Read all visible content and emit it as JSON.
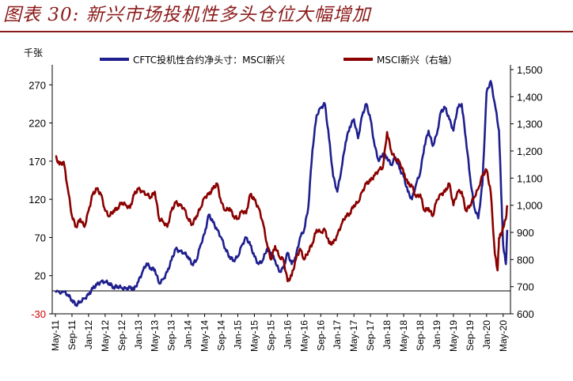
{
  "header": {
    "title": "图表 30:  新兴市场投机性多头仓位大幅增加"
  },
  "chart_data": {
    "type": "line",
    "left_axis": {
      "unit": "千张",
      "ticks": [
        270,
        220,
        170,
        120,
        70,
        20,
        -30
      ],
      "range": [
        -30,
        290
      ]
    },
    "right_axis": {
      "ticks": [
        "1,500",
        "1,400",
        "1,300",
        "1,200",
        "1,100",
        "1,000",
        "900",
        "800",
        "700",
        "600"
      ],
      "range": [
        600,
        1500
      ]
    },
    "x_ticks": [
      "May-11",
      "Sep-11",
      "Jan-12",
      "May-12",
      "Sep-12",
      "Jan-13",
      "May-13",
      "Sep-13",
      "Jan-14",
      "May-14",
      "Sep-14",
      "Jan-15",
      "May-15",
      "Sep-15",
      "Jan-16",
      "May-16",
      "Sep-16",
      "Jan-17",
      "May-17",
      "Sep-17",
      "Jan-18",
      "May-18",
      "Sep-18",
      "Jan-19",
      "May-19",
      "Sep-19",
      "Jan-20",
      "May-20"
    ],
    "series": [
      {
        "name": "CFTC投机性合约净头寸：MSCI新兴",
        "axis": "left",
        "color": "#1f1f8f",
        "points": [
          [
            "May-11",
            -2
          ],
          [
            "Jul-11",
            -1
          ],
          [
            "Aug-11",
            -5
          ],
          [
            "Sep-11",
            -12
          ],
          [
            "Oct-11",
            -18
          ],
          [
            "Nov-11",
            -14
          ],
          [
            "Dec-11",
            -10
          ],
          [
            "Jan-12",
            -5
          ],
          [
            "Feb-12",
            3
          ],
          [
            "Mar-12",
            8
          ],
          [
            "Apr-12",
            12
          ],
          [
            "May-12",
            12
          ],
          [
            "Jun-12",
            10
          ],
          [
            "Jul-12",
            5
          ],
          [
            "Aug-12",
            6
          ],
          [
            "Sep-12",
            4
          ],
          [
            "Oct-12",
            3
          ],
          [
            "Nov-12",
            4
          ],
          [
            "Dec-12",
            2
          ],
          [
            "Jan-13",
            12
          ],
          [
            "Feb-13",
            25
          ],
          [
            "Mar-13",
            36
          ],
          [
            "Apr-13",
            30
          ],
          [
            "May-13",
            28
          ],
          [
            "Jun-13",
            10
          ],
          [
            "Jul-13",
            15
          ],
          [
            "Aug-13",
            25
          ],
          [
            "Sep-13",
            40
          ],
          [
            "Oct-13",
            55
          ],
          [
            "Nov-13",
            52
          ],
          [
            "Dec-13",
            50
          ],
          [
            "Jan-14",
            45
          ],
          [
            "Feb-14",
            35
          ],
          [
            "Mar-14",
            40
          ],
          [
            "Apr-14",
            60
          ],
          [
            "May-14",
            75
          ],
          [
            "Jun-14",
            100
          ],
          [
            "Jul-14",
            90
          ],
          [
            "Aug-14",
            80
          ],
          [
            "Sep-14",
            70
          ],
          [
            "Oct-14",
            55
          ],
          [
            "Nov-14",
            45
          ],
          [
            "Dec-14",
            40
          ],
          [
            "Jan-15",
            45
          ],
          [
            "Feb-15",
            60
          ],
          [
            "Mar-15",
            70
          ],
          [
            "Apr-15",
            60
          ],
          [
            "May-15",
            45
          ],
          [
            "Jun-15",
            35
          ],
          [
            "Jul-15",
            40
          ],
          [
            "Aug-15",
            55
          ],
          [
            "Sep-15",
            50
          ],
          [
            "Oct-15",
            40
          ],
          [
            "Nov-15",
            25
          ],
          [
            "Dec-15",
            30
          ],
          [
            "Jan-16",
            50
          ],
          [
            "Feb-16",
            35
          ],
          [
            "Mar-16",
            45
          ],
          [
            "Apr-16",
            70
          ],
          [
            "May-16",
            80
          ],
          [
            "Jun-16",
            110
          ],
          [
            "Jul-16",
            185
          ],
          [
            "Aug-16",
            230
          ],
          [
            "Sep-16",
            240
          ],
          [
            "Oct-16",
            245
          ],
          [
            "Nov-16",
            200
          ],
          [
            "Dec-16",
            150
          ],
          [
            "Jan-17",
            130
          ],
          [
            "Feb-17",
            160
          ],
          [
            "Mar-17",
            195
          ],
          [
            "Apr-17",
            215
          ],
          [
            "May-17",
            225
          ],
          [
            "Jun-17",
            200
          ],
          [
            "Jul-17",
            230
          ],
          [
            "Aug-17",
            245
          ],
          [
            "Sep-17",
            225
          ],
          [
            "Oct-17",
            190
          ],
          [
            "Nov-17",
            170
          ],
          [
            "Dec-17",
            180
          ],
          [
            "Jan-18",
            175
          ],
          [
            "Feb-18",
            165
          ],
          [
            "Mar-18",
            175
          ],
          [
            "Apr-18",
            160
          ],
          [
            "May-18",
            150
          ],
          [
            "Jun-18",
            130
          ],
          [
            "Jul-18",
            120
          ],
          [
            "Aug-18",
            140
          ],
          [
            "Sep-18",
            155
          ],
          [
            "Oct-18",
            190
          ],
          [
            "Nov-18",
            210
          ],
          [
            "Dec-18",
            190
          ],
          [
            "Jan-19",
            205
          ],
          [
            "Feb-19",
            235
          ],
          [
            "Mar-19",
            240
          ],
          [
            "Apr-19",
            225
          ],
          [
            "May-19",
            210
          ],
          [
            "Jun-19",
            240
          ],
          [
            "Jul-19",
            245
          ],
          [
            "Aug-19",
            200
          ],
          [
            "Sep-19",
            150
          ],
          [
            "Oct-19",
            110
          ],
          [
            "Nov-19",
            95
          ],
          [
            "Dec-19",
            140
          ],
          [
            "Jan-20",
            260
          ],
          [
            "Feb-20",
            275
          ],
          [
            "Mar-20",
            245
          ],
          [
            "Apr-20",
            210
          ],
          [
            "Apr-20b",
            110
          ],
          [
            "May-20",
            60
          ],
          [
            "May-20b",
            35
          ],
          [
            "May-20c",
            80
          ]
        ]
      },
      {
        "name": "MSCI新兴（右轴）",
        "axis": "right",
        "color": "#8b0000",
        "points": [
          [
            "May-11",
            1180
          ],
          [
            "Jun-11",
            1150
          ],
          [
            "Jul-11",
            1160
          ],
          [
            "Aug-11",
            1060
          ],
          [
            "Sep-11",
            960
          ],
          [
            "Oct-11",
            920
          ],
          [
            "Nov-11",
            950
          ],
          [
            "Dec-11",
            920
          ],
          [
            "Jan-12",
            980
          ],
          [
            "Feb-12",
            1040
          ],
          [
            "Mar-12",
            1060
          ],
          [
            "Apr-12",
            1040
          ],
          [
            "May-12",
            980
          ],
          [
            "Jun-12",
            960
          ],
          [
            "Jul-12",
            980
          ],
          [
            "Aug-12",
            990
          ],
          [
            "Sep-12",
            1010
          ],
          [
            "Oct-12",
            1000
          ],
          [
            "Nov-12",
            990
          ],
          [
            "Dec-12",
            1040
          ],
          [
            "Jan-13",
            1060
          ],
          [
            "Feb-13",
            1050
          ],
          [
            "Mar-13",
            1040
          ],
          [
            "Apr-13",
            1030
          ],
          [
            "May-13",
            1050
          ],
          [
            "Jun-13",
            950
          ],
          [
            "Jul-13",
            940
          ],
          [
            "Aug-13",
            920
          ],
          [
            "Sep-13",
            980
          ],
          [
            "Oct-13",
            1010
          ],
          [
            "Nov-13",
            1000
          ],
          [
            "Dec-13",
            990
          ],
          [
            "Jan-14",
            950
          ],
          [
            "Feb-14",
            930
          ],
          [
            "Mar-14",
            960
          ],
          [
            "Apr-14",
            990
          ],
          [
            "May-14",
            1030
          ],
          [
            "Jun-14",
            1040
          ],
          [
            "Jul-14",
            1060
          ],
          [
            "Aug-14",
            1080
          ],
          [
            "Sep-14",
            1010
          ],
          [
            "Oct-14",
            980
          ],
          [
            "Nov-14",
            990
          ],
          [
            "Dec-14",
            960
          ],
          [
            "Jan-15",
            950
          ],
          [
            "Feb-15",
            980
          ],
          [
            "Mar-15",
            970
          ],
          [
            "Apr-15",
            1040
          ],
          [
            "May-15",
            1020
          ],
          [
            "Jun-15",
            990
          ],
          [
            "Jul-15",
            940
          ],
          [
            "Aug-15",
            860
          ],
          [
            "Sep-15",
            800
          ],
          [
            "Oct-15",
            850
          ],
          [
            "Nov-15",
            810
          ],
          [
            "Dec-15",
            800
          ],
          [
            "Jan-16",
            720
          ],
          [
            "Feb-16",
            740
          ],
          [
            "Mar-16",
            800
          ],
          [
            "Apr-16",
            840
          ],
          [
            "May-16",
            800
          ],
          [
            "Jun-16",
            830
          ],
          [
            "Jul-16",
            860
          ],
          [
            "Aug-16",
            910
          ],
          [
            "Sep-16",
            900
          ],
          [
            "Oct-16",
            910
          ],
          [
            "Nov-16",
            860
          ],
          [
            "Dec-16",
            860
          ],
          [
            "Jan-17",
            890
          ],
          [
            "Feb-17",
            930
          ],
          [
            "Mar-17",
            960
          ],
          [
            "Apr-17",
            970
          ],
          [
            "May-17",
            1000
          ],
          [
            "Jun-17",
            1010
          ],
          [
            "Jul-17",
            1050
          ],
          [
            "Aug-17",
            1080
          ],
          [
            "Sep-17",
            1090
          ],
          [
            "Oct-17",
            1110
          ],
          [
            "Nov-17",
            1130
          ],
          [
            "Dec-17",
            1140
          ],
          [
            "Jan-18",
            1270
          ],
          [
            "Feb-18",
            1200
          ],
          [
            "Mar-18",
            1170
          ],
          [
            "Apr-18",
            1160
          ],
          [
            "May-18",
            1120
          ],
          [
            "Jun-18",
            1080
          ],
          [
            "Jul-18",
            1070
          ],
          [
            "Aug-18",
            1030
          ],
          [
            "Sep-18",
            1040
          ],
          [
            "Oct-18",
            980
          ],
          [
            "Nov-18",
            990
          ],
          [
            "Dec-18",
            960
          ],
          [
            "Jan-19",
            1020
          ],
          [
            "Feb-19",
            1040
          ],
          [
            "Mar-19",
            1050
          ],
          [
            "Apr-19",
            1080
          ],
          [
            "May-19",
            1000
          ],
          [
            "Jun-19",
            1050
          ],
          [
            "Jul-19",
            1050
          ],
          [
            "Aug-19",
            980
          ],
          [
            "Sep-19",
            1000
          ],
          [
            "Oct-19",
            1030
          ],
          [
            "Nov-19",
            1060
          ],
          [
            "Dec-19",
            1110
          ],
          [
            "Jan-20",
            1130
          ],
          [
            "Feb-20",
            1050
          ],
          [
            "Mar-20",
            820
          ],
          [
            "Mar-20b",
            760
          ],
          [
            "Apr-20",
            880
          ],
          [
            "Apr-20b",
            900
          ],
          [
            "May-20",
            920
          ],
          [
            "May-20b",
            950
          ],
          [
            "May-20c",
            1000
          ]
        ]
      }
    ]
  }
}
